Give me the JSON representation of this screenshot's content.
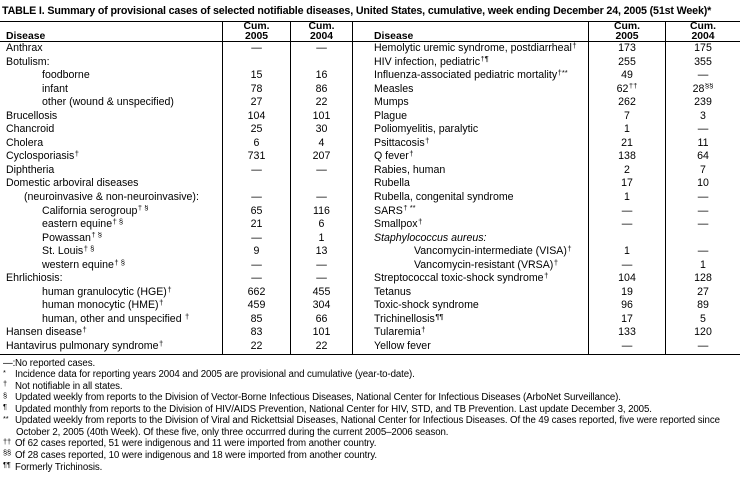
{
  "title": "TABLE I. Summary of provisional cases of selected notifiable diseases, United States, cumulative, week ending December 24, 2005 (51st Week)*",
  "header": {
    "disease_left": "Disease",
    "disease_right": "Disease",
    "left_2005": {
      "line1": "Cum.",
      "line2": "2005"
    },
    "left_2004": {
      "line1": "Cum.",
      "line2": "2004"
    },
    "right_2005": {
      "line1": "Cum.",
      "line2": "2005"
    },
    "right_2004": {
      "line1": "Cum.",
      "line2": "2004"
    }
  },
  "left_rows": [
    {
      "label": "Anthrax",
      "sup": "",
      "c2005": "—",
      "sup2005": "",
      "c2004": "—",
      "sup2004": "",
      "indent": 0,
      "italic": false
    },
    {
      "label": "Botulism:",
      "sup": "",
      "c2005": "",
      "sup2005": "",
      "c2004": "",
      "sup2004": "",
      "indent": 0,
      "italic": false
    },
    {
      "label": "foodborne",
      "sup": "",
      "c2005": "15",
      "sup2005": "",
      "c2004": "16",
      "sup2004": "",
      "indent": 2,
      "italic": false
    },
    {
      "label": "infant",
      "sup": "",
      "c2005": "78",
      "sup2005": "",
      "c2004": "86",
      "sup2004": "",
      "indent": 2,
      "italic": false
    },
    {
      "label": "other (wound & unspecified)",
      "sup": "",
      "c2005": "27",
      "sup2005": "",
      "c2004": "22",
      "sup2004": "",
      "indent": 2,
      "italic": false
    },
    {
      "label": "Brucellosis",
      "sup": "",
      "c2005": "104",
      "sup2005": "",
      "c2004": "101",
      "sup2004": "",
      "indent": 0,
      "italic": false
    },
    {
      "label": "Chancroid",
      "sup": "",
      "c2005": "25",
      "sup2005": "",
      "c2004": "30",
      "sup2004": "",
      "indent": 0,
      "italic": false
    },
    {
      "label": "Cholera",
      "sup": "",
      "c2005": "6",
      "sup2005": "",
      "c2004": "4",
      "sup2004": "",
      "indent": 0,
      "italic": false
    },
    {
      "label": "Cyclosporiasis",
      "sup": "†",
      "c2005": "731",
      "sup2005": "",
      "c2004": "207",
      "sup2004": "",
      "indent": 0,
      "italic": false
    },
    {
      "label": "Diphtheria",
      "sup": "",
      "c2005": "—",
      "sup2005": "",
      "c2004": "—",
      "sup2004": "",
      "indent": 0,
      "italic": false
    },
    {
      "label": "Domestic arboviral diseases",
      "sup": "",
      "c2005": "",
      "sup2005": "",
      "c2004": "",
      "sup2004": "",
      "indent": 0,
      "italic": false
    },
    {
      "label": "(neuroinvasive & non-neuroinvasive):",
      "sup": "",
      "c2005": "—",
      "sup2005": "",
      "c2004": "—",
      "sup2004": "",
      "indent": 1,
      "italic": false
    },
    {
      "label": "California serogroup",
      "sup": "† §",
      "c2005": "65",
      "sup2005": "",
      "c2004": "116",
      "sup2004": "",
      "indent": 2,
      "italic": false
    },
    {
      "label": "eastern equine",
      "sup": "† §",
      "c2005": "21",
      "sup2005": "",
      "c2004": "6",
      "sup2004": "",
      "indent": 2,
      "italic": false
    },
    {
      "label": "Powassan",
      "sup": "† §",
      "c2005": "—",
      "sup2005": "",
      "c2004": "1",
      "sup2004": "",
      "indent": 2,
      "italic": false
    },
    {
      "label": "St. Louis",
      "sup": "† §",
      "c2005": "9",
      "sup2005": "",
      "c2004": "13",
      "sup2004": "",
      "indent": 2,
      "italic": false
    },
    {
      "label": "western equine",
      "sup": "† §",
      "c2005": "—",
      "sup2005": "",
      "c2004": "—",
      "sup2004": "",
      "indent": 2,
      "italic": false
    },
    {
      "label": "Ehrlichiosis:",
      "sup": "",
      "c2005": "—",
      "sup2005": "",
      "c2004": "—",
      "sup2004": "",
      "indent": 0,
      "italic": false
    },
    {
      "label": "human granulocytic (HGE)",
      "sup": "†",
      "c2005": "662",
      "sup2005": "",
      "c2004": "455",
      "sup2004": "",
      "indent": 2,
      "italic": false
    },
    {
      "label": "human monocytic (HME)",
      "sup": "†",
      "c2005": "459",
      "sup2005": "",
      "c2004": "304",
      "sup2004": "",
      "indent": 2,
      "italic": false
    },
    {
      "label": "human, other and unspecified ",
      "sup": "†",
      "c2005": "85",
      "sup2005": "",
      "c2004": "66",
      "sup2004": "",
      "indent": 2,
      "italic": false
    },
    {
      "label": "Hansen disease",
      "sup": "†",
      "c2005": "83",
      "sup2005": "",
      "c2004": "101",
      "sup2004": "",
      "indent": 0,
      "italic": false
    },
    {
      "label": "Hantavirus pulmonary syndrome",
      "sup": "†",
      "c2005": "22",
      "sup2005": "",
      "c2004": "22",
      "sup2004": "",
      "indent": 0,
      "italic": false
    }
  ],
  "right_rows": [
    {
      "label": "Hemolytic uremic syndrome, postdiarrheal",
      "sup": "†",
      "c2005": "173",
      "sup2005": "",
      "c2004": "175",
      "sup2004": "",
      "indent": 0,
      "italic": false
    },
    {
      "label": "HIV infection, pediatric",
      "sup": "†¶",
      "c2005": "255",
      "sup2005": "",
      "c2004": "355",
      "sup2004": "",
      "indent": 0,
      "italic": false
    },
    {
      "label": "Influenza-associated pediatric mortality",
      "sup": "†**",
      "c2005": "49",
      "sup2005": "",
      "c2004": "—",
      "sup2004": "",
      "indent": 0,
      "italic": false
    },
    {
      "label": "Measles",
      "sup": "",
      "c2005": "62",
      "sup2005": "††",
      "c2004": "28",
      "sup2004": "§§",
      "indent": 0,
      "italic": false
    },
    {
      "label": "Mumps",
      "sup": "",
      "c2005": "262",
      "sup2005": "",
      "c2004": "239",
      "sup2004": "",
      "indent": 0,
      "italic": false
    },
    {
      "label": "Plague",
      "sup": "",
      "c2005": "7",
      "sup2005": "",
      "c2004": "3",
      "sup2004": "",
      "indent": 0,
      "italic": false
    },
    {
      "label": "Poliomyelitis, paralytic",
      "sup": "",
      "c2005": "1",
      "sup2005": "",
      "c2004": "—",
      "sup2004": "",
      "indent": 0,
      "italic": false
    },
    {
      "label": "Psittacosis",
      "sup": "†",
      "c2005": "21",
      "sup2005": "",
      "c2004": "11",
      "sup2004": "",
      "indent": 0,
      "italic": false
    },
    {
      "label": "Q fever",
      "sup": "†",
      "c2005": "138",
      "sup2005": "",
      "c2004": "64",
      "sup2004": "",
      "indent": 0,
      "italic": false
    },
    {
      "label": "Rabies, human",
      "sup": "",
      "c2005": "2",
      "sup2005": "",
      "c2004": "7",
      "sup2004": "",
      "indent": 0,
      "italic": false
    },
    {
      "label": "Rubella",
      "sup": "",
      "c2005": "17",
      "sup2005": "",
      "c2004": "10",
      "sup2004": "",
      "indent": 0,
      "italic": false
    },
    {
      "label": "Rubella, congenital syndrome",
      "sup": "",
      "c2005": "1",
      "sup2005": "",
      "c2004": "—",
      "sup2004": "",
      "indent": 0,
      "italic": false
    },
    {
      "label": "SARS",
      "sup": "† **",
      "c2005": "—",
      "sup2005": "",
      "c2004": "—",
      "sup2004": "",
      "indent": 0,
      "italic": false
    },
    {
      "label": "Smallpox",
      "sup": "†",
      "c2005": "—",
      "sup2005": "",
      "c2004": "—",
      "sup2004": "",
      "indent": 0,
      "italic": false
    },
    {
      "label": "Staphylococcus aureus:",
      "sup": "",
      "c2005": "",
      "sup2005": "",
      "c2004": "",
      "sup2004": "",
      "indent": 0,
      "italic": true
    },
    {
      "label": "Vancomycin-intermediate (VISA)",
      "sup": "†",
      "c2005": "1",
      "sup2005": "",
      "c2004": "—",
      "sup2004": "",
      "indent": 2,
      "italic": false
    },
    {
      "label": "Vancomycin-resistant (VRSA)",
      "sup": "†",
      "c2005": "—",
      "sup2005": "",
      "c2004": "1",
      "sup2004": "",
      "indent": 2,
      "italic": false
    },
    {
      "label": "Streptococcal toxic-shock syndrome",
      "sup": "†",
      "c2005": "104",
      "sup2005": "",
      "c2004": "128",
      "sup2004": "",
      "indent": 0,
      "italic": false
    },
    {
      "label": "Tetanus",
      "sup": "",
      "c2005": "19",
      "sup2005": "",
      "c2004": "27",
      "sup2004": "",
      "indent": 0,
      "italic": false
    },
    {
      "label": "Toxic-shock syndrome",
      "sup": "",
      "c2005": "96",
      "sup2005": "",
      "c2004": "89",
      "sup2004": "",
      "indent": 0,
      "italic": false
    },
    {
      "label": "Trichinellosis",
      "sup": "¶¶",
      "c2005": "17",
      "sup2005": "",
      "c2004": "5",
      "sup2004": "",
      "indent": 0,
      "italic": false
    },
    {
      "label": "Tularemia",
      "sup": "†",
      "c2005": "133",
      "sup2005": "",
      "c2004": "120",
      "sup2004": "",
      "indent": 0,
      "italic": false
    },
    {
      "label": "Yellow fever",
      "sup": "",
      "c2005": "—",
      "sup2005": "",
      "c2004": "—",
      "sup2004": "",
      "indent": 0,
      "italic": false
    }
  ],
  "footnotes": [
    {
      "marker": "—:",
      "sup": false,
      "text": "No reported cases."
    },
    {
      "marker": "*",
      "sup": true,
      "text": "Incidence data for reporting years 2004 and 2005 are provisional and cumulative (year-to-date)."
    },
    {
      "marker": "†",
      "sup": true,
      "text": "Not notifiable in all states."
    },
    {
      "marker": "§",
      "sup": true,
      "text": "Updated weekly from reports to the Division of Vector-Borne Infectious Diseases, National Center for Infectious Diseases (ArboNet Surveillance)."
    },
    {
      "marker": "¶",
      "sup": true,
      "text": "Updated monthly from reports to the Division of HIV/AIDS Prevention, National Center for HIV, STD, and TB Prevention. Last update December 3, 2005."
    },
    {
      "marker": "**",
      "sup": true,
      "text": "Updated weekly from reports to the Division of Viral and Rickettsial Diseases, National Center for Infectious Diseases. Of the 49 cases reported, five were reported since October 2, 2005 (40th Week). Of these five, only three occurrred during the current 2005–2006 season."
    },
    {
      "marker": "††",
      "sup": true,
      "text": "Of 62 cases reported, 51 were indigenous and 11 were imported from another country."
    },
    {
      "marker": "§§",
      "sup": true,
      "text": "Of 28 cases reported, 10 were indigenous and 18 were imported from another country."
    },
    {
      "marker": "¶¶",
      "sup": true,
      "text": "Formerly Trichinosis."
    }
  ]
}
